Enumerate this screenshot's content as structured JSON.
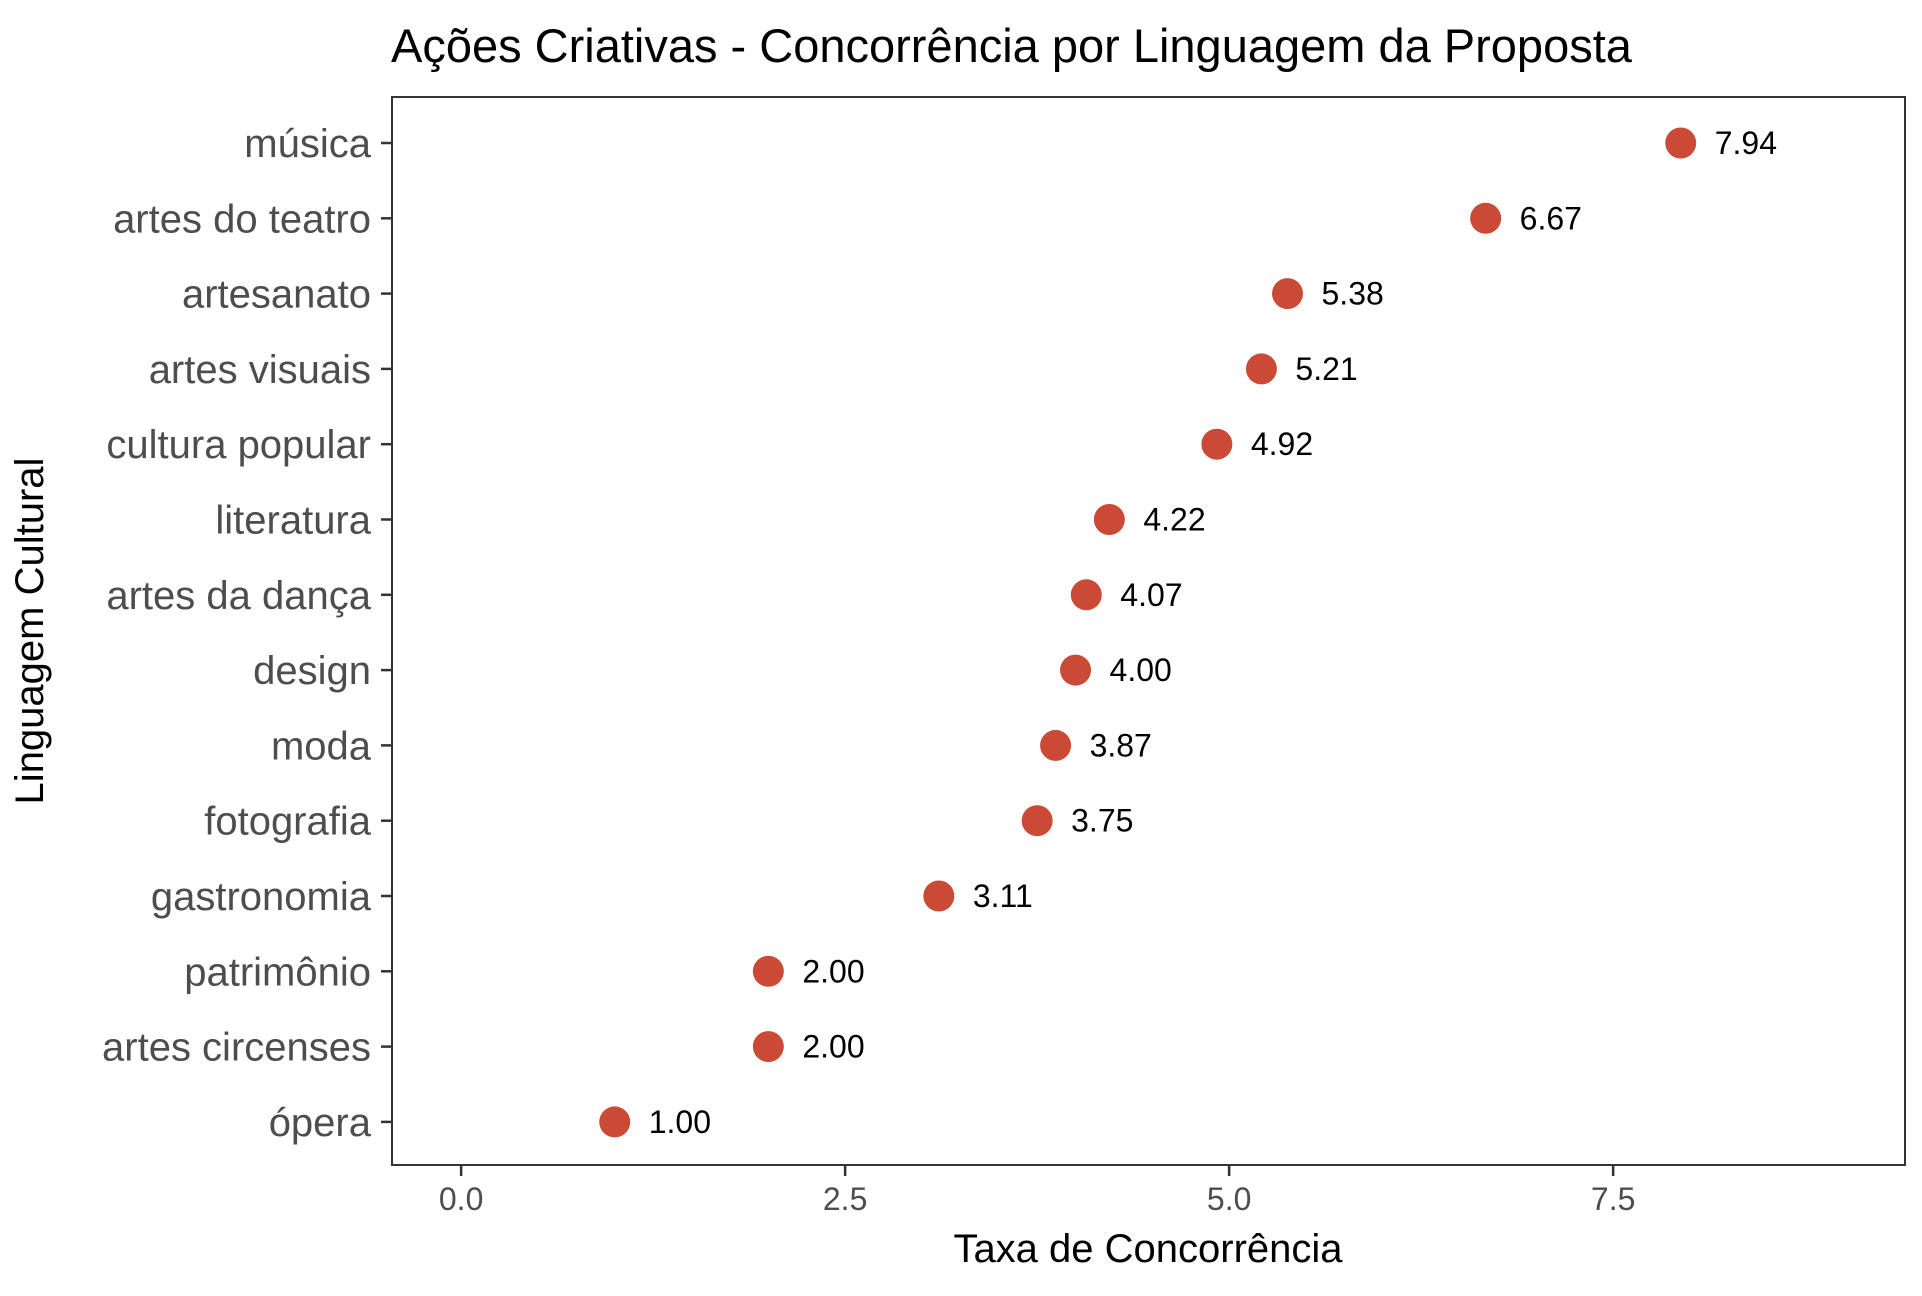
{
  "chart_data": {
    "type": "scatter",
    "title": "Ações Criativas - Concorrência por Linguagem da Proposta",
    "xlabel": "Taxa de Concorrência",
    "ylabel": "Linguagem Cultural",
    "xlim": [
      -0.45,
      9.4
    ],
    "x_ticks": [
      0.0,
      2.5,
      5.0,
      7.5
    ],
    "x_tick_labels": [
      "0.0",
      "2.5",
      "5.0",
      "7.5"
    ],
    "grid": false,
    "categories": [
      "música",
      "artes do teatro",
      "artesanato",
      "artes visuais",
      "cultura popular",
      "literatura",
      "artes da dança",
      "design",
      "moda",
      "fotografia",
      "gastronomia",
      "patrimônio",
      "artes circenses",
      "ópera"
    ],
    "values": [
      7.94,
      6.67,
      5.38,
      5.21,
      4.92,
      4.22,
      4.07,
      4.0,
      3.87,
      3.75,
      3.11,
      2.0,
      2.0,
      1.0
    ],
    "value_labels": [
      "7.94",
      "6.67",
      "5.38",
      "5.21",
      "4.92",
      "4.22",
      "4.07",
      "4.00",
      "3.87",
      "3.75",
      "3.11",
      "2.00",
      "2.00",
      "1.00"
    ],
    "colors": {
      "point": "#CB4A36",
      "axis_text": "#4D4D4D",
      "panel_border": "#333333",
      "tick": "#333333",
      "label_text": "#000000"
    }
  }
}
